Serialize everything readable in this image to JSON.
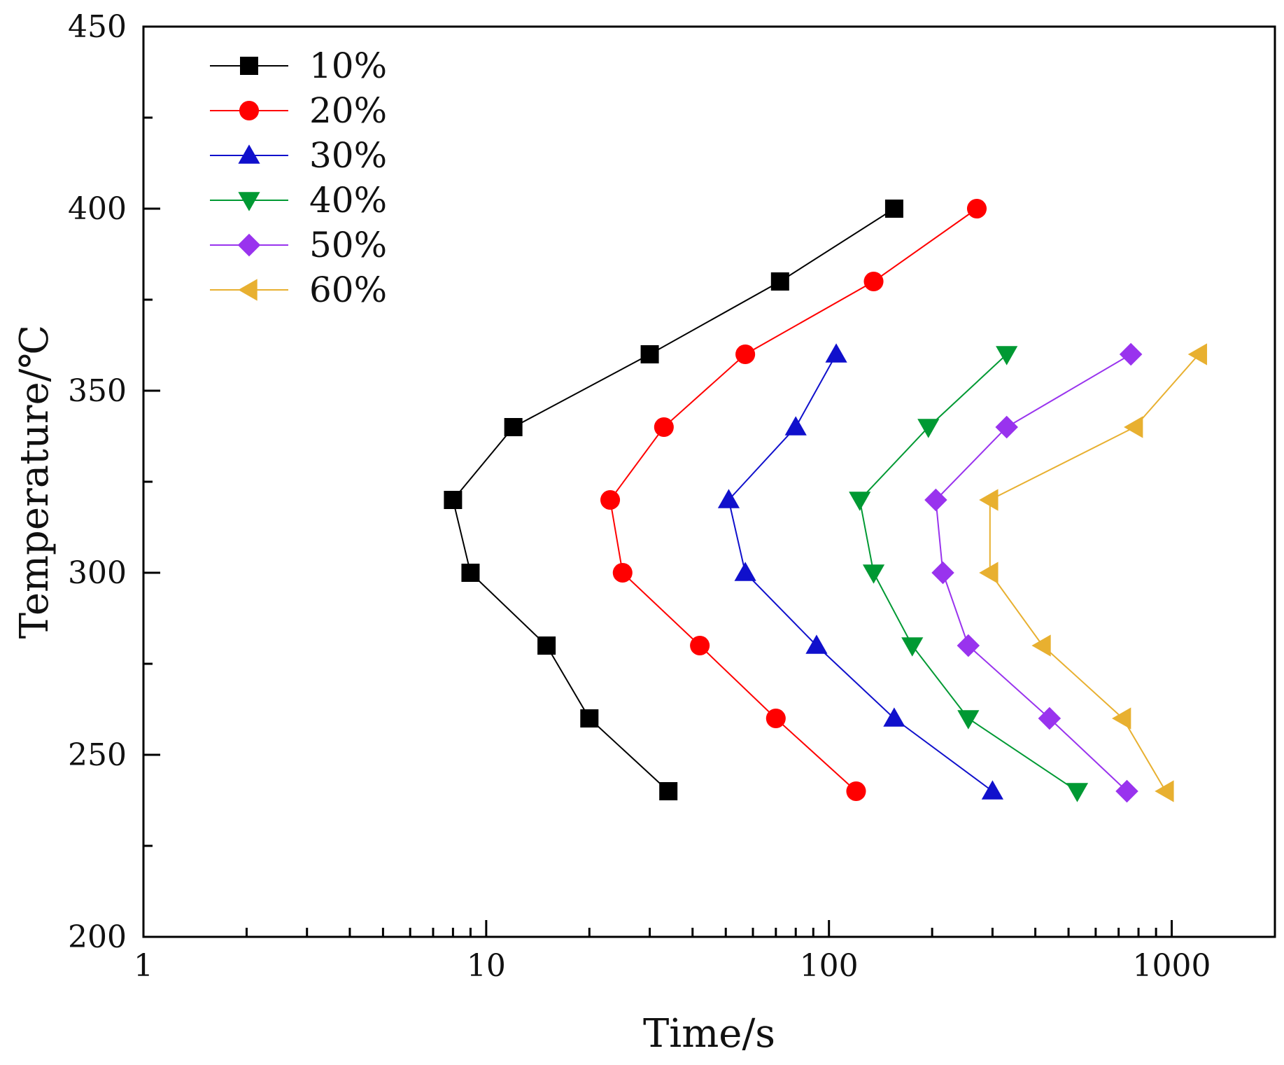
{
  "chart_data": {
    "type": "line",
    "title": "",
    "xlabel": "Time/s",
    "ylabel": "Temperature/℃",
    "xscale": "log",
    "xlim": [
      1,
      2000
    ],
    "ylim": [
      200,
      450
    ],
    "xticks": [
      {
        "value": 1,
        "label": "1"
      },
      {
        "value": 10,
        "label": "10"
      },
      {
        "value": 100,
        "label": "100"
      },
      {
        "value": 1000,
        "label": "1000"
      }
    ],
    "yticks": [
      {
        "value": 200,
        "label": "200"
      },
      {
        "value": 250,
        "label": "250"
      },
      {
        "value": 300,
        "label": "300"
      },
      {
        "value": 350,
        "label": "350"
      },
      {
        "value": 400,
        "label": "400"
      },
      {
        "value": 450,
        "label": "450"
      }
    ],
    "legend_position": "top-left",
    "series": [
      {
        "name": "10%",
        "color": "#000000",
        "marker": "square",
        "points": [
          {
            "t": 34,
            "T": 240
          },
          {
            "t": 20,
            "T": 260
          },
          {
            "t": 15,
            "T": 280
          },
          {
            "t": 9,
            "T": 300
          },
          {
            "t": 8,
            "T": 320
          },
          {
            "t": 12,
            "T": 340
          },
          {
            "t": 30,
            "T": 360
          },
          {
            "t": 72,
            "T": 380
          },
          {
            "t": 155,
            "T": 400
          }
        ]
      },
      {
        "name": "20%",
        "color": "#ff0000",
        "marker": "circle",
        "points": [
          {
            "t": 120,
            "T": 240
          },
          {
            "t": 70,
            "T": 260
          },
          {
            "t": 42,
            "T": 280
          },
          {
            "t": 25,
            "T": 300
          },
          {
            "t": 23,
            "T": 320
          },
          {
            "t": 33,
            "T": 340
          },
          {
            "t": 57,
            "T": 360
          },
          {
            "t": 135,
            "T": 380
          },
          {
            "t": 270,
            "T": 400
          }
        ]
      },
      {
        "name": "30%",
        "color": "#1010cc",
        "marker": "triangle-up",
        "points": [
          {
            "t": 300,
            "T": 240
          },
          {
            "t": 155,
            "T": 260
          },
          {
            "t": 92,
            "T": 280
          },
          {
            "t": 57,
            "T": 300
          },
          {
            "t": 51,
            "T": 320
          },
          {
            "t": 80,
            "T": 340
          },
          {
            "t": 105,
            "T": 360
          }
        ]
      },
      {
        "name": "40%",
        "color": "#009933",
        "marker": "triangle-down",
        "points": [
          {
            "t": 530,
            "T": 240
          },
          {
            "t": 255,
            "T": 260
          },
          {
            "t": 175,
            "T": 280
          },
          {
            "t": 135,
            "T": 300
          },
          {
            "t": 123,
            "T": 320
          },
          {
            "t": 195,
            "T": 340
          },
          {
            "t": 330,
            "T": 360
          }
        ]
      },
      {
        "name": "50%",
        "color": "#9933ee",
        "marker": "diamond",
        "points": [
          {
            "t": 740,
            "T": 240
          },
          {
            "t": 440,
            "T": 260
          },
          {
            "t": 255,
            "T": 280
          },
          {
            "t": 215,
            "T": 300
          },
          {
            "t": 205,
            "T": 320
          },
          {
            "t": 330,
            "T": 340
          },
          {
            "t": 760,
            "T": 360
          }
        ]
      },
      {
        "name": "60%",
        "color": "#e8b030",
        "marker": "triangle-left",
        "points": [
          {
            "t": 960,
            "T": 240
          },
          {
            "t": 720,
            "T": 260
          },
          {
            "t": 420,
            "T": 280
          },
          {
            "t": 295,
            "T": 300
          },
          {
            "t": 295,
            "T": 320
          },
          {
            "t": 780,
            "T": 340
          },
          {
            "t": 1200,
            "T": 360
          }
        ]
      }
    ]
  }
}
